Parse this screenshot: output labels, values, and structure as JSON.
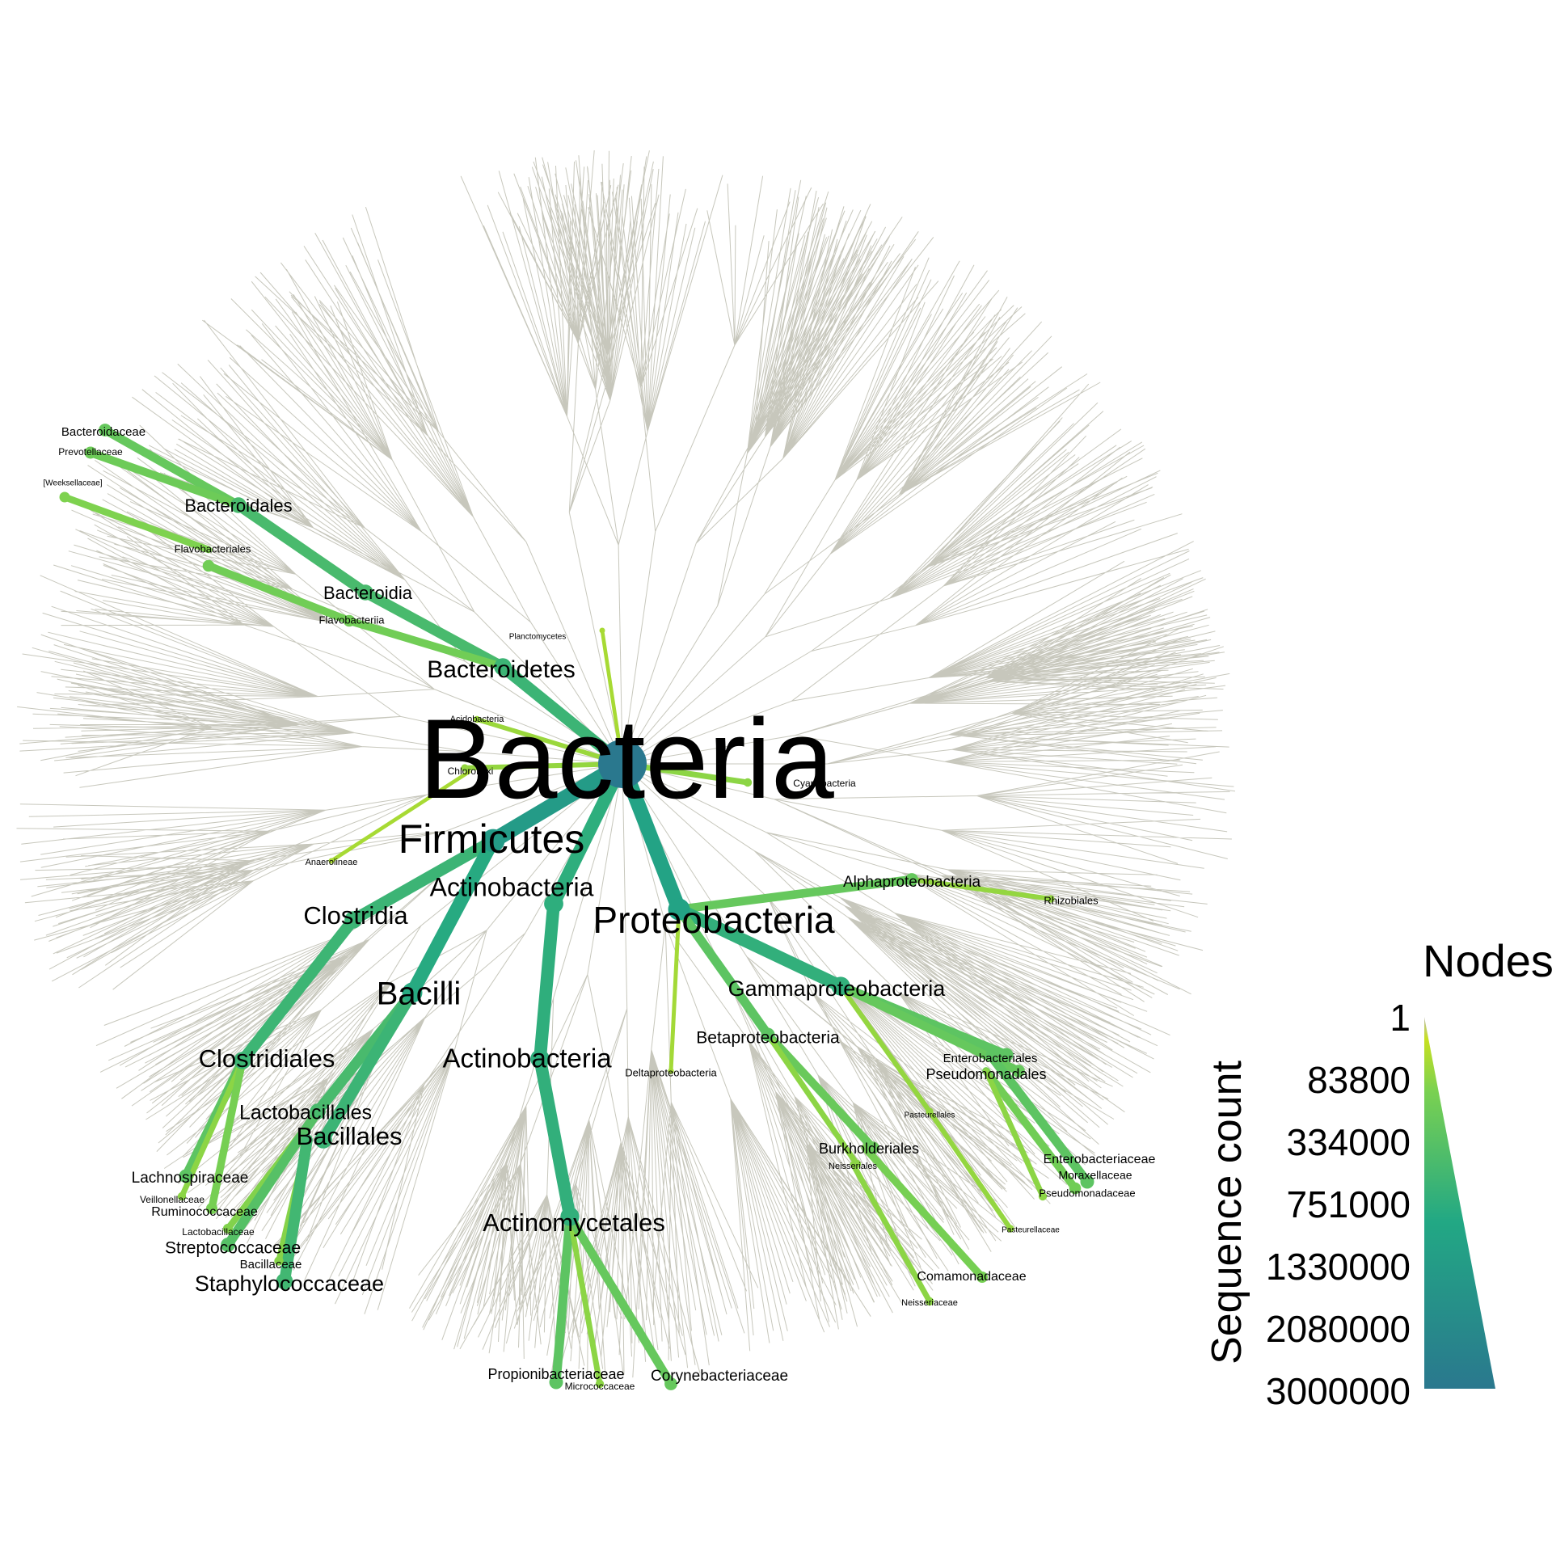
{
  "root": "Bacteria",
  "taxa": [
    {
      "name": "Bacteria",
      "parent": null,
      "count": 3000000,
      "show_label": true
    },
    {
      "name": "Firmicutes",
      "parent": "Bacteria",
      "count": 1000000,
      "show_label": true
    },
    {
      "name": "Proteobacteria",
      "parent": "Bacteria",
      "count": 800000,
      "show_label": true
    },
    {
      "name": "Actinobacteria",
      "parent": "Bacteria",
      "count": 500000,
      "show_label": true
    },
    {
      "name": "Bacteroidetes",
      "parent": "Bacteria",
      "count": 350000,
      "show_label": true
    },
    {
      "name": "Cyanobacteria",
      "parent": "Bacteria",
      "count": 30000,
      "show_label": true
    },
    {
      "name": "Chloroflexi",
      "parent": "Bacteria",
      "count": 20000,
      "show_label": true
    },
    {
      "name": "Acidobacteria",
      "parent": "Bacteria",
      "count": 15000,
      "show_label": true
    },
    {
      "name": "Planctomycetes",
      "parent": "Bacteria",
      "count": 8000,
      "show_label": true
    },
    {
      "name": "Clostridia",
      "parent": "Firmicutes",
      "count": 350000,
      "show_label": true
    },
    {
      "name": "Bacilli",
      "parent": "Firmicutes",
      "count": 600000,
      "show_label": true
    },
    {
      "name": "Clostridiales",
      "parent": "Clostridia",
      "count": 340000,
      "show_label": true
    },
    {
      "name": "Lachnospiraceae",
      "parent": "Clostridiales",
      "count": 150000,
      "show_label": true
    },
    {
      "name": "Veillonellaceae",
      "parent": "Clostridiales",
      "count": 30000,
      "show_label": true
    },
    {
      "name": "Ruminococcaceae",
      "parent": "Clostridiales",
      "count": 80000,
      "show_label": true
    },
    {
      "name": "Lactobacillales",
      "parent": "Bacilli",
      "count": 250000,
      "show_label": true
    },
    {
      "name": "Bacillales",
      "parent": "Bacilli",
      "count": 350000,
      "show_label": true
    },
    {
      "name": "Lactobacillaceae",
      "parent": "Lactobacillales",
      "count": 50000,
      "show_label": true
    },
    {
      "name": "Streptococcaceae",
      "parent": "Lactobacillales",
      "count": 180000,
      "show_label": true
    },
    {
      "name": "Bacillaceae",
      "parent": "Bacillales",
      "count": 40000,
      "show_label": true
    },
    {
      "name": "Staphylococcaceae",
      "parent": "Bacillales",
      "count": 300000,
      "show_label": true
    },
    {
      "name": "Actinobacteria (class)",
      "label": "Actinobacteria",
      "parent": "Actinobacteria",
      "count": 480000,
      "show_label": true
    },
    {
      "name": "Actinomycetales",
      "parent": "Actinobacteria (class)",
      "count": 450000,
      "show_label": true
    },
    {
      "name": "Propionibacteriaceae",
      "parent": "Actinomycetales",
      "count": 150000,
      "show_label": true
    },
    {
      "name": "Micrococcaceae",
      "parent": "Actinomycetales",
      "count": 30000,
      "show_label": true
    },
    {
      "name": "Corynebacteriaceae",
      "parent": "Actinomycetales",
      "count": 120000,
      "show_label": true
    },
    {
      "name": "Alphaproteobacteria",
      "parent": "Proteobacteria",
      "count": 120000,
      "show_label": true
    },
    {
      "name": "Rhizobiales",
      "parent": "Alphaproteobacteria",
      "count": 20000,
      "show_label": true
    },
    {
      "name": "Gammaproteobacteria",
      "parent": "Proteobacteria",
      "count": 450000,
      "show_label": true
    },
    {
      "name": "Betaproteobacteria",
      "parent": "Proteobacteria",
      "count": 150000,
      "show_label": true
    },
    {
      "name": "Deltaproteobacteria",
      "parent": "Proteobacteria",
      "count": 10000,
      "show_label": true
    },
    {
      "name": "Enterobacteriales",
      "parent": "Gammaproteobacteria",
      "count": 150000,
      "show_label": true
    },
    {
      "name": "Pseudomonadales",
      "parent": "Gammaproteobacteria",
      "count": 120000,
      "show_label": true
    },
    {
      "name": "Pasteurellales",
      "parent": "Gammaproteobacteria",
      "count": 20000,
      "show_label": true
    },
    {
      "name": "Enterobacteriaceae",
      "parent": "Enterobacteriales",
      "count": 150000,
      "show_label": true
    },
    {
      "name": "Moraxellaceae",
      "parent": "Pseudomonadales",
      "count": 90000,
      "show_label": true
    },
    {
      "name": "Pseudomonadaceae",
      "parent": "Pseudomonadales",
      "count": 30000,
      "show_label": true
    },
    {
      "name": "Pasteurellaceae",
      "parent": "Pasteurellales",
      "count": 20000,
      "show_label": true
    },
    {
      "name": "Burkholderiales",
      "parent": "Betaproteobacteria",
      "count": 110000,
      "show_label": true
    },
    {
      "name": "Neisseriales",
      "parent": "Betaproteobacteria",
      "count": 30000,
      "show_label": true
    },
    {
      "name": "Comamonadaceae",
      "parent": "Burkholderiales",
      "count": 80000,
      "show_label": true
    },
    {
      "name": "Neisseriaceae",
      "parent": "Neisseriales",
      "count": 30000,
      "show_label": true
    },
    {
      "name": "Bacteroidia",
      "parent": "Bacteroidetes",
      "count": 250000,
      "show_label": true
    },
    {
      "name": "Flavobacteriia",
      "parent": "Bacteroidetes",
      "count": 90000,
      "show_label": true
    },
    {
      "name": "Bacteroidales",
      "parent": "Bacteroidia",
      "count": 250000,
      "show_label": true
    },
    {
      "name": "Flavobacteriales",
      "parent": "Flavobacteriia",
      "count": 90000,
      "show_label": true
    },
    {
      "name": "Bacteroidaceae",
      "parent": "Bacteroidales",
      "count": 120000,
      "show_label": true
    },
    {
      "name": "Prevotellaceae",
      "parent": "Bacteroidales",
      "count": 100000,
      "show_label": true
    },
    {
      "name": "[Weeksellaceae]",
      "parent": "Flavobacteriales",
      "count": 60000,
      "show_label": true
    },
    {
      "name": "Anaerolineae",
      "parent": "Chloroflexi",
      "count": 8000,
      "show_label": true
    }
  ],
  "legend": {
    "title": "Nodes",
    "axis_label": "Sequence count",
    "ticks": [
      "1",
      "83800",
      "334000",
      "751000",
      "1330000",
      "2080000",
      "3000000"
    ],
    "colors": [
      "#bfbfb0",
      "#c7e020",
      "#7ad151",
      "#22a884",
      "#2a788e"
    ]
  },
  "style": {
    "background": "#ffffff",
    "edge_base_color": "#bdbdb0"
  }
}
